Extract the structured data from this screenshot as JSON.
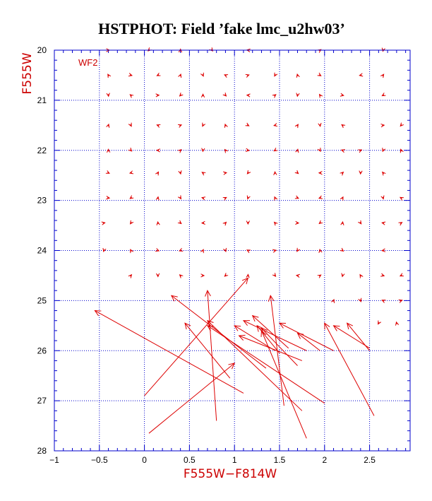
{
  "chart_data": {
    "type": "scatter",
    "title": "HSTPHOT: Field ’fake lmc_u2hw03’",
    "xlabel": "F555W−F814W",
    "ylabel": "F555W",
    "panel_label": "WF2",
    "xlim": [
      -1.0,
      2.95
    ],
    "ylim": [
      28.0,
      20.0
    ],
    "y_inverted": true,
    "grid": true,
    "x_ticks": [
      -1,
      -0.5,
      0,
      0.5,
      1,
      1.5,
      2,
      2.5
    ],
    "x_tick_labels": [
      "−1",
      "−0.5",
      "0",
      "0.5",
      "1",
      "1.5",
      "2",
      "2.5"
    ],
    "y_ticks": [
      20,
      21,
      22,
      23,
      24,
      25,
      26,
      27,
      28
    ],
    "y_tick_labels": [
      "20",
      "21",
      "22",
      "23",
      "24",
      "25",
      "26",
      "27",
      "28"
    ],
    "colors": {
      "grid": "#0000cc",
      "axis": "#0000cc",
      "data": "#dd0000",
      "title": "#000000"
    },
    "vector_rows": [
      {
        "y": 20.0,
        "x": [
          -0.4,
          0.05,
          0.4,
          0.75,
          1.15,
          1.95,
          2.65
        ]
      },
      {
        "y": 20.5,
        "x": [
          -0.4,
          -0.15,
          0.15,
          0.4,
          0.65,
          0.9,
          1.15,
          1.45,
          1.7,
          1.95,
          2.4,
          2.65
        ]
      },
      {
        "y": 20.9,
        "x": [
          -0.4,
          -0.15,
          0.15,
          0.4,
          0.65,
          0.9,
          1.15,
          1.45,
          1.7,
          1.95,
          2.2,
          2.65
        ]
      },
      {
        "y": 21.5,
        "x": [
          -0.4,
          -0.15,
          0.15,
          0.4,
          0.65,
          0.9,
          1.15,
          1.45,
          1.7,
          1.95,
          2.2,
          2.65,
          2.85
        ]
      },
      {
        "y": 22.0,
        "x": [
          -0.4,
          -0.15,
          0.15,
          0.4,
          0.65,
          0.9,
          1.15,
          1.45,
          1.7,
          1.95,
          2.2,
          2.4,
          2.65,
          2.85
        ]
      },
      {
        "y": 22.45,
        "x": [
          -0.4,
          -0.15,
          0.15,
          0.4,
          0.65,
          0.9,
          1.15,
          1.45,
          1.7,
          1.95,
          2.2,
          2.4,
          2.65
        ]
      },
      {
        "y": 22.95,
        "x": [
          -0.4,
          -0.15,
          0.15,
          0.4,
          0.65,
          0.9,
          1.15,
          1.45,
          1.7,
          1.95,
          2.2,
          2.65,
          2.85
        ]
      },
      {
        "y": 23.45,
        "x": [
          -0.45,
          -0.15,
          0.15,
          0.4,
          0.65,
          0.9,
          1.15,
          1.45,
          1.7,
          1.95,
          2.2,
          2.4,
          2.65,
          2.85
        ]
      },
      {
        "y": 24.0,
        "x": [
          -0.45,
          -0.15,
          0.15,
          0.4,
          0.65,
          0.9,
          1.15,
          1.45,
          1.7,
          1.95,
          2.2,
          2.65
        ]
      },
      {
        "y": 24.5,
        "x": [
          -0.15,
          0.15,
          0.4,
          0.65,
          0.9,
          1.15,
          1.45,
          1.7,
          1.95,
          2.2,
          2.4,
          2.65,
          2.85
        ]
      },
      {
        "y": 25.0,
        "x": [
          2.1,
          2.4,
          2.65,
          2.85
        ]
      },
      {
        "y": 25.45,
        "x": [
          2.6,
          2.8
        ]
      }
    ],
    "long_vectors": [
      {
        "x1": 1.1,
        "y1": 26.85,
        "x2": -0.55,
        "y2": 25.2
      },
      {
        "x1": 0.0,
        "y1": 26.9,
        "x2": 1.15,
        "y2": 24.55
      },
      {
        "x1": 0.05,
        "y1": 27.65,
        "x2": 1.0,
        "y2": 26.25
      },
      {
        "x1": 0.8,
        "y1": 27.4,
        "x2": 0.7,
        "y2": 24.8
      },
      {
        "x1": 1.75,
        "y1": 27.2,
        "x2": 0.7,
        "y2": 25.4
      },
      {
        "x1": 1.55,
        "y1": 27.1,
        "x2": 1.4,
        "y2": 24.9
      },
      {
        "x1": 1.8,
        "y1": 27.75,
        "x2": 1.3,
        "y2": 25.6
      },
      {
        "x1": 2.0,
        "y1": 27.05,
        "x2": 0.7,
        "y2": 25.5
      },
      {
        "x1": 2.55,
        "y1": 27.3,
        "x2": 2.0,
        "y2": 25.45
      },
      {
        "x1": 1.35,
        "y1": 26.35,
        "x2": 0.3,
        "y2": 24.9
      },
      {
        "x1": 0.95,
        "y1": 26.55,
        "x2": 0.45,
        "y2": 25.45
      },
      {
        "x1": 1.75,
        "y1": 26.2,
        "x2": 1.05,
        "y2": 25.7
      },
      {
        "x1": 1.6,
        "y1": 25.95,
        "x2": 1.2,
        "y2": 25.3
      },
      {
        "x1": 1.8,
        "y1": 26.0,
        "x2": 1.1,
        "y2": 25.4
      },
      {
        "x1": 1.7,
        "y1": 26.3,
        "x2": 1.3,
        "y2": 25.55
      },
      {
        "x1": 2.1,
        "y1": 26.0,
        "x2": 1.5,
        "y2": 25.45
      },
      {
        "x1": 2.5,
        "y1": 25.95,
        "x2": 2.1,
        "y2": 25.5
      },
      {
        "x1": 2.5,
        "y1": 26.0,
        "x2": 2.25,
        "y2": 25.45
      },
      {
        "x1": 1.45,
        "y1": 26.0,
        "x2": 1.0,
        "y2": 25.5
      },
      {
        "x1": 1.95,
        "y1": 26.0,
        "x2": 1.7,
        "y2": 25.65
      },
      {
        "x1": 1.5,
        "y1": 26.05,
        "x2": 1.25,
        "y2": 25.5
      }
    ]
  }
}
